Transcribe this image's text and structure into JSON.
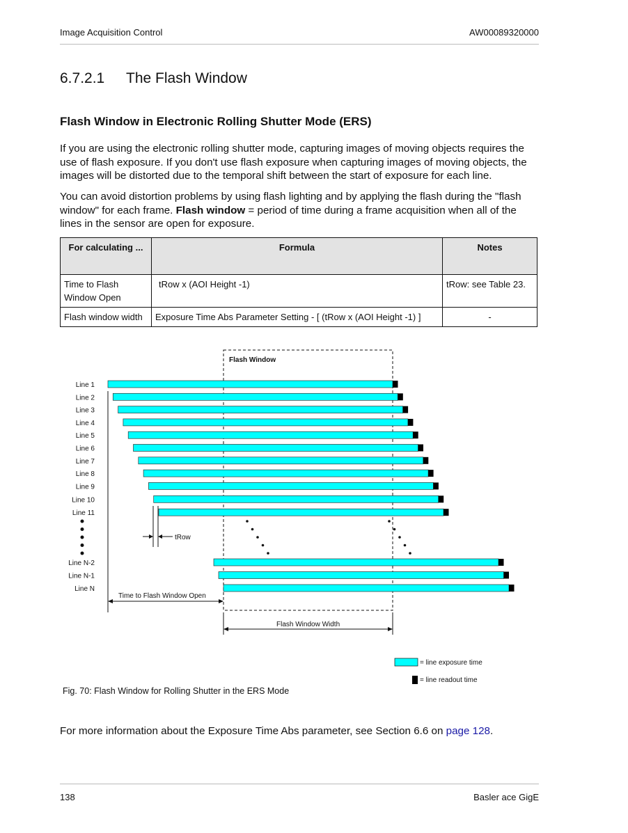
{
  "header": {
    "left": "Image Acquisition Control",
    "right": "AW00089320000"
  },
  "section": {
    "number": "6.7.2.1",
    "title": "The Flash Window"
  },
  "subheading": "Flash Window in Electronic Rolling Shutter Mode (ERS)",
  "para1": "If you are using the electronic rolling shutter mode, capturing images of moving objects requires the use of flash exposure. If you don't use flash exposure when capturing images of moving objects, the images will be distorted due to the temporal shift between the start of exposure for each line.",
  "para2": {
    "before": "You can avoid distortion problems by using flash lighting and by applying the flash during the \"flash window\" for each frame. ",
    "bold": "Flash window",
    "after": " = period of time during a frame acquisition when all of the lines in the sensor are open for exposure."
  },
  "table": {
    "headers": [
      "For calculating ...",
      "Formula",
      "Notes"
    ],
    "rows": [
      [
        "Time to Flash Window Open",
        "tRow x (AOI Height -1)",
        "tRow: see Table 23."
      ],
      [
        "Flash window width",
        "Exposure Time Abs Parameter Setting - [ (tRow x (AOI Height -1) ]",
        "-"
      ]
    ]
  },
  "figure": {
    "flash_window_label": "Flash Window",
    "lines": [
      "Line 1",
      "Line 2",
      "Line 3",
      "Line 4",
      "Line 5",
      "Line 6",
      "Line 7",
      "Line 8",
      "Line 9",
      "Line 10",
      "Line 11"
    ],
    "last_lines": [
      "Line N-2",
      "Line N-1",
      "Line N"
    ],
    "trow_label": "tRow",
    "time_to_open_label": "Time to Flash Window Open",
    "width_label": "Flash Window Width",
    "legend": {
      "exposure": "= line exposure time",
      "readout": "= line readout time"
    },
    "colors": {
      "exposure": "#00ffff",
      "readout": "#000000"
    },
    "caption": "Fig. 70: Flash Window for Rolling Shutter in the ERS Mode"
  },
  "footer_para": {
    "before": "For more information about the Exposure Time Abs parameter, see Section 6.6 on ",
    "link": "page 128",
    "after": "."
  },
  "footer": {
    "page": "138",
    "product": "Basler ace GigE"
  }
}
